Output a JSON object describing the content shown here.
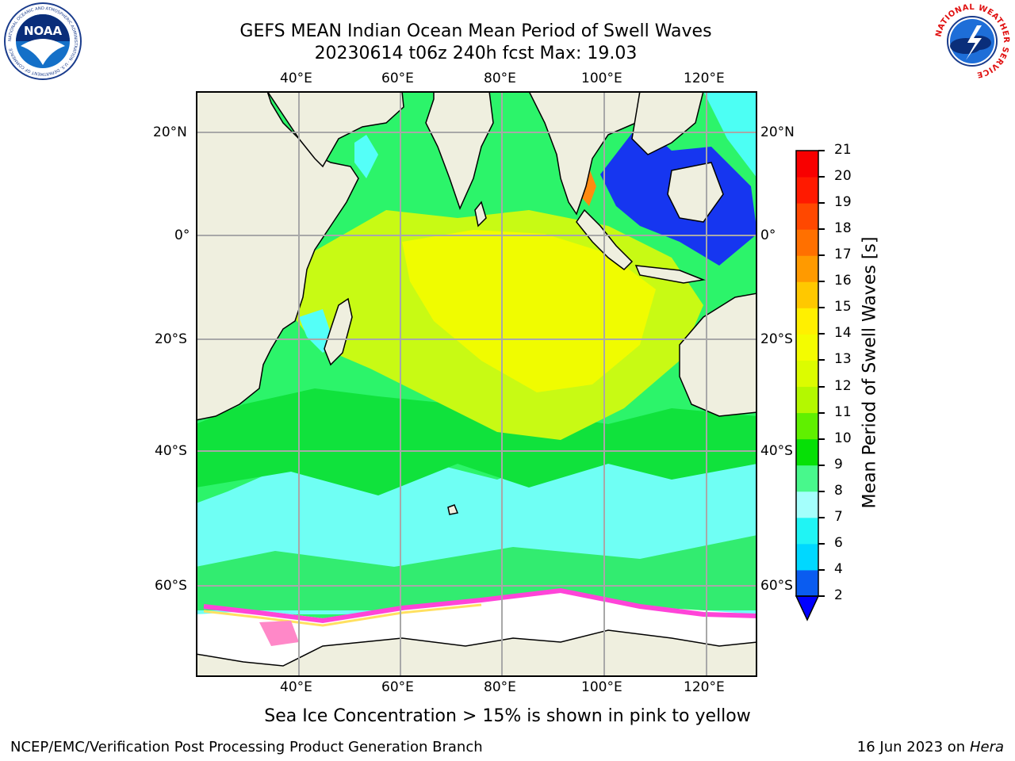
{
  "header": {
    "title_line1": "GEFS MEAN Indian Ocean Mean Period of Swell Waves",
    "title_line2": "20230614 t06z 240h fcst   Max: 19.03"
  },
  "logos": {
    "left_text": "NOAA",
    "left_ring_text": "NATIONAL OCEANIC AND ATMOSPHERIC ADMINISTRATION · U.S. DEPARTMENT OF COMMERCE",
    "right_ring_text": "NATIONAL WEATHER SERVICE"
  },
  "map": {
    "lon_ticks": [
      "40°E",
      "60°E",
      "80°E",
      "100°E",
      "120°E"
    ],
    "lat_ticks": [
      "20°N",
      "0°",
      "20°S",
      "40°S",
      "60°S"
    ]
  },
  "colorbar": {
    "label": "Mean Period of Swell Waves [s]",
    "levels": [
      "2",
      "4",
      "6",
      "7",
      "8",
      "9",
      "10",
      "11",
      "12",
      "13",
      "14",
      "15",
      "16",
      "17",
      "18",
      "19",
      "20",
      "21"
    ],
    "colors": [
      "#0a5cf0",
      "#00d8ff",
      "#20f4f4",
      "#a4fffc",
      "#48f88c",
      "#06e006",
      "#60f000",
      "#b4f800",
      "#dcfc00",
      "#f4fc00",
      "#fff000",
      "#ffc800",
      "#ff9a00",
      "#ff7000",
      "#ff4800",
      "#ff1a00",
      "#f80000"
    ],
    "extend_color": "#0000ff"
  },
  "note": "Sea Ice Concentration > 15% is shown in pink to yellow",
  "footer": {
    "left": "NCEP/EMC/Verification Post Processing Product Generation Branch",
    "date": "16 Jun 2023 on",
    "machine": "Hera"
  }
}
